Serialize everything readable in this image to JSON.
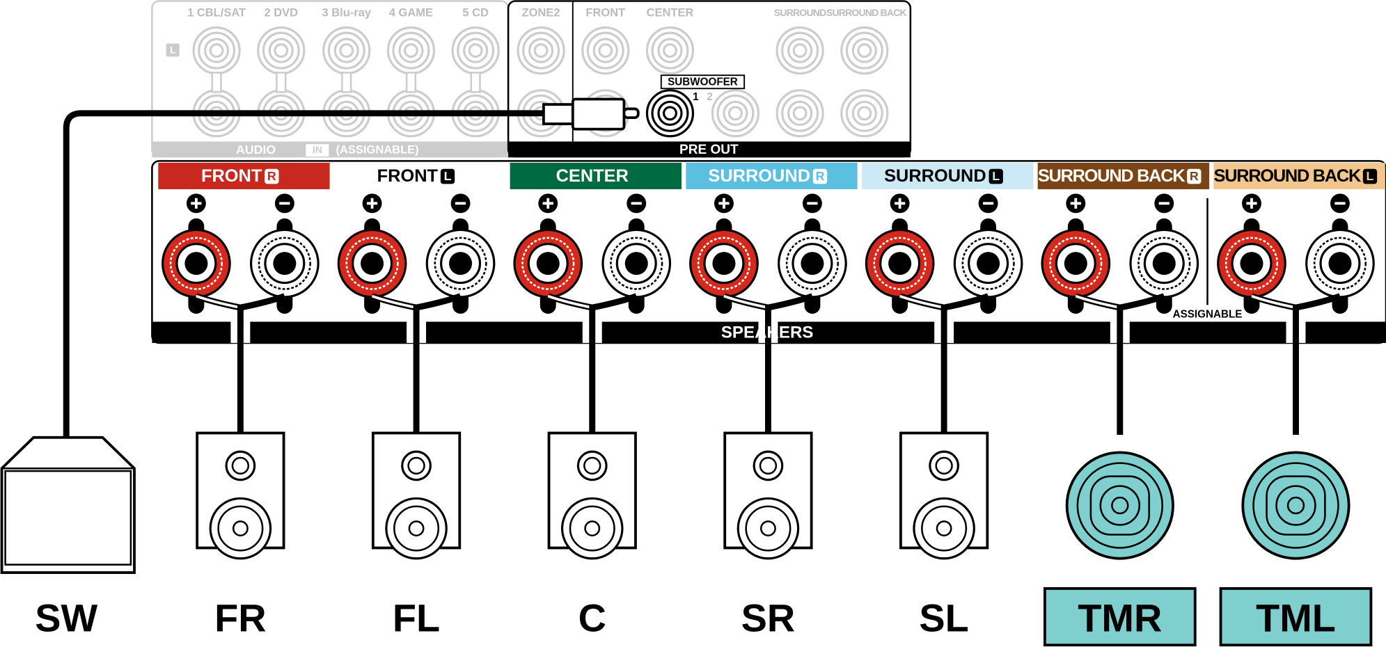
{
  "audio_in": {
    "inputs": [
      "1 CBL/SAT",
      "2 DVD",
      "3 Blu-ray",
      "4 GAME",
      "5 CD"
    ],
    "badge": "L",
    "label": "AUDIO",
    "in": "IN",
    "assignable": "(ASSIGNABLE)"
  },
  "pre_out": {
    "columns": [
      "ZONE2",
      "FRONT",
      "CENTER",
      "SURROUND",
      "SURROUND BACK"
    ],
    "subwoofer": "SUBWOOFER",
    "sub_numbers": [
      "1",
      "2"
    ],
    "label": "PRE OUT"
  },
  "speaker_terminals": {
    "channels": [
      {
        "name": "FRONT",
        "side": "R"
      },
      {
        "name": "FRONT",
        "side": "L"
      },
      {
        "name": "CENTER"
      },
      {
        "name": "SURROUND",
        "side": "R"
      },
      {
        "name": "SURROUND",
        "side": "L"
      },
      {
        "name": "SURROUND BACK",
        "side": "R"
      },
      {
        "name": "SURROUND BACK",
        "side": "L"
      }
    ],
    "label": "SPEAKERS",
    "assignable": "ASSIGNABLE"
  },
  "speakers": [
    "SW",
    "FR",
    "FL",
    "C",
    "SR",
    "SL",
    "TMR",
    "TML"
  ]
}
